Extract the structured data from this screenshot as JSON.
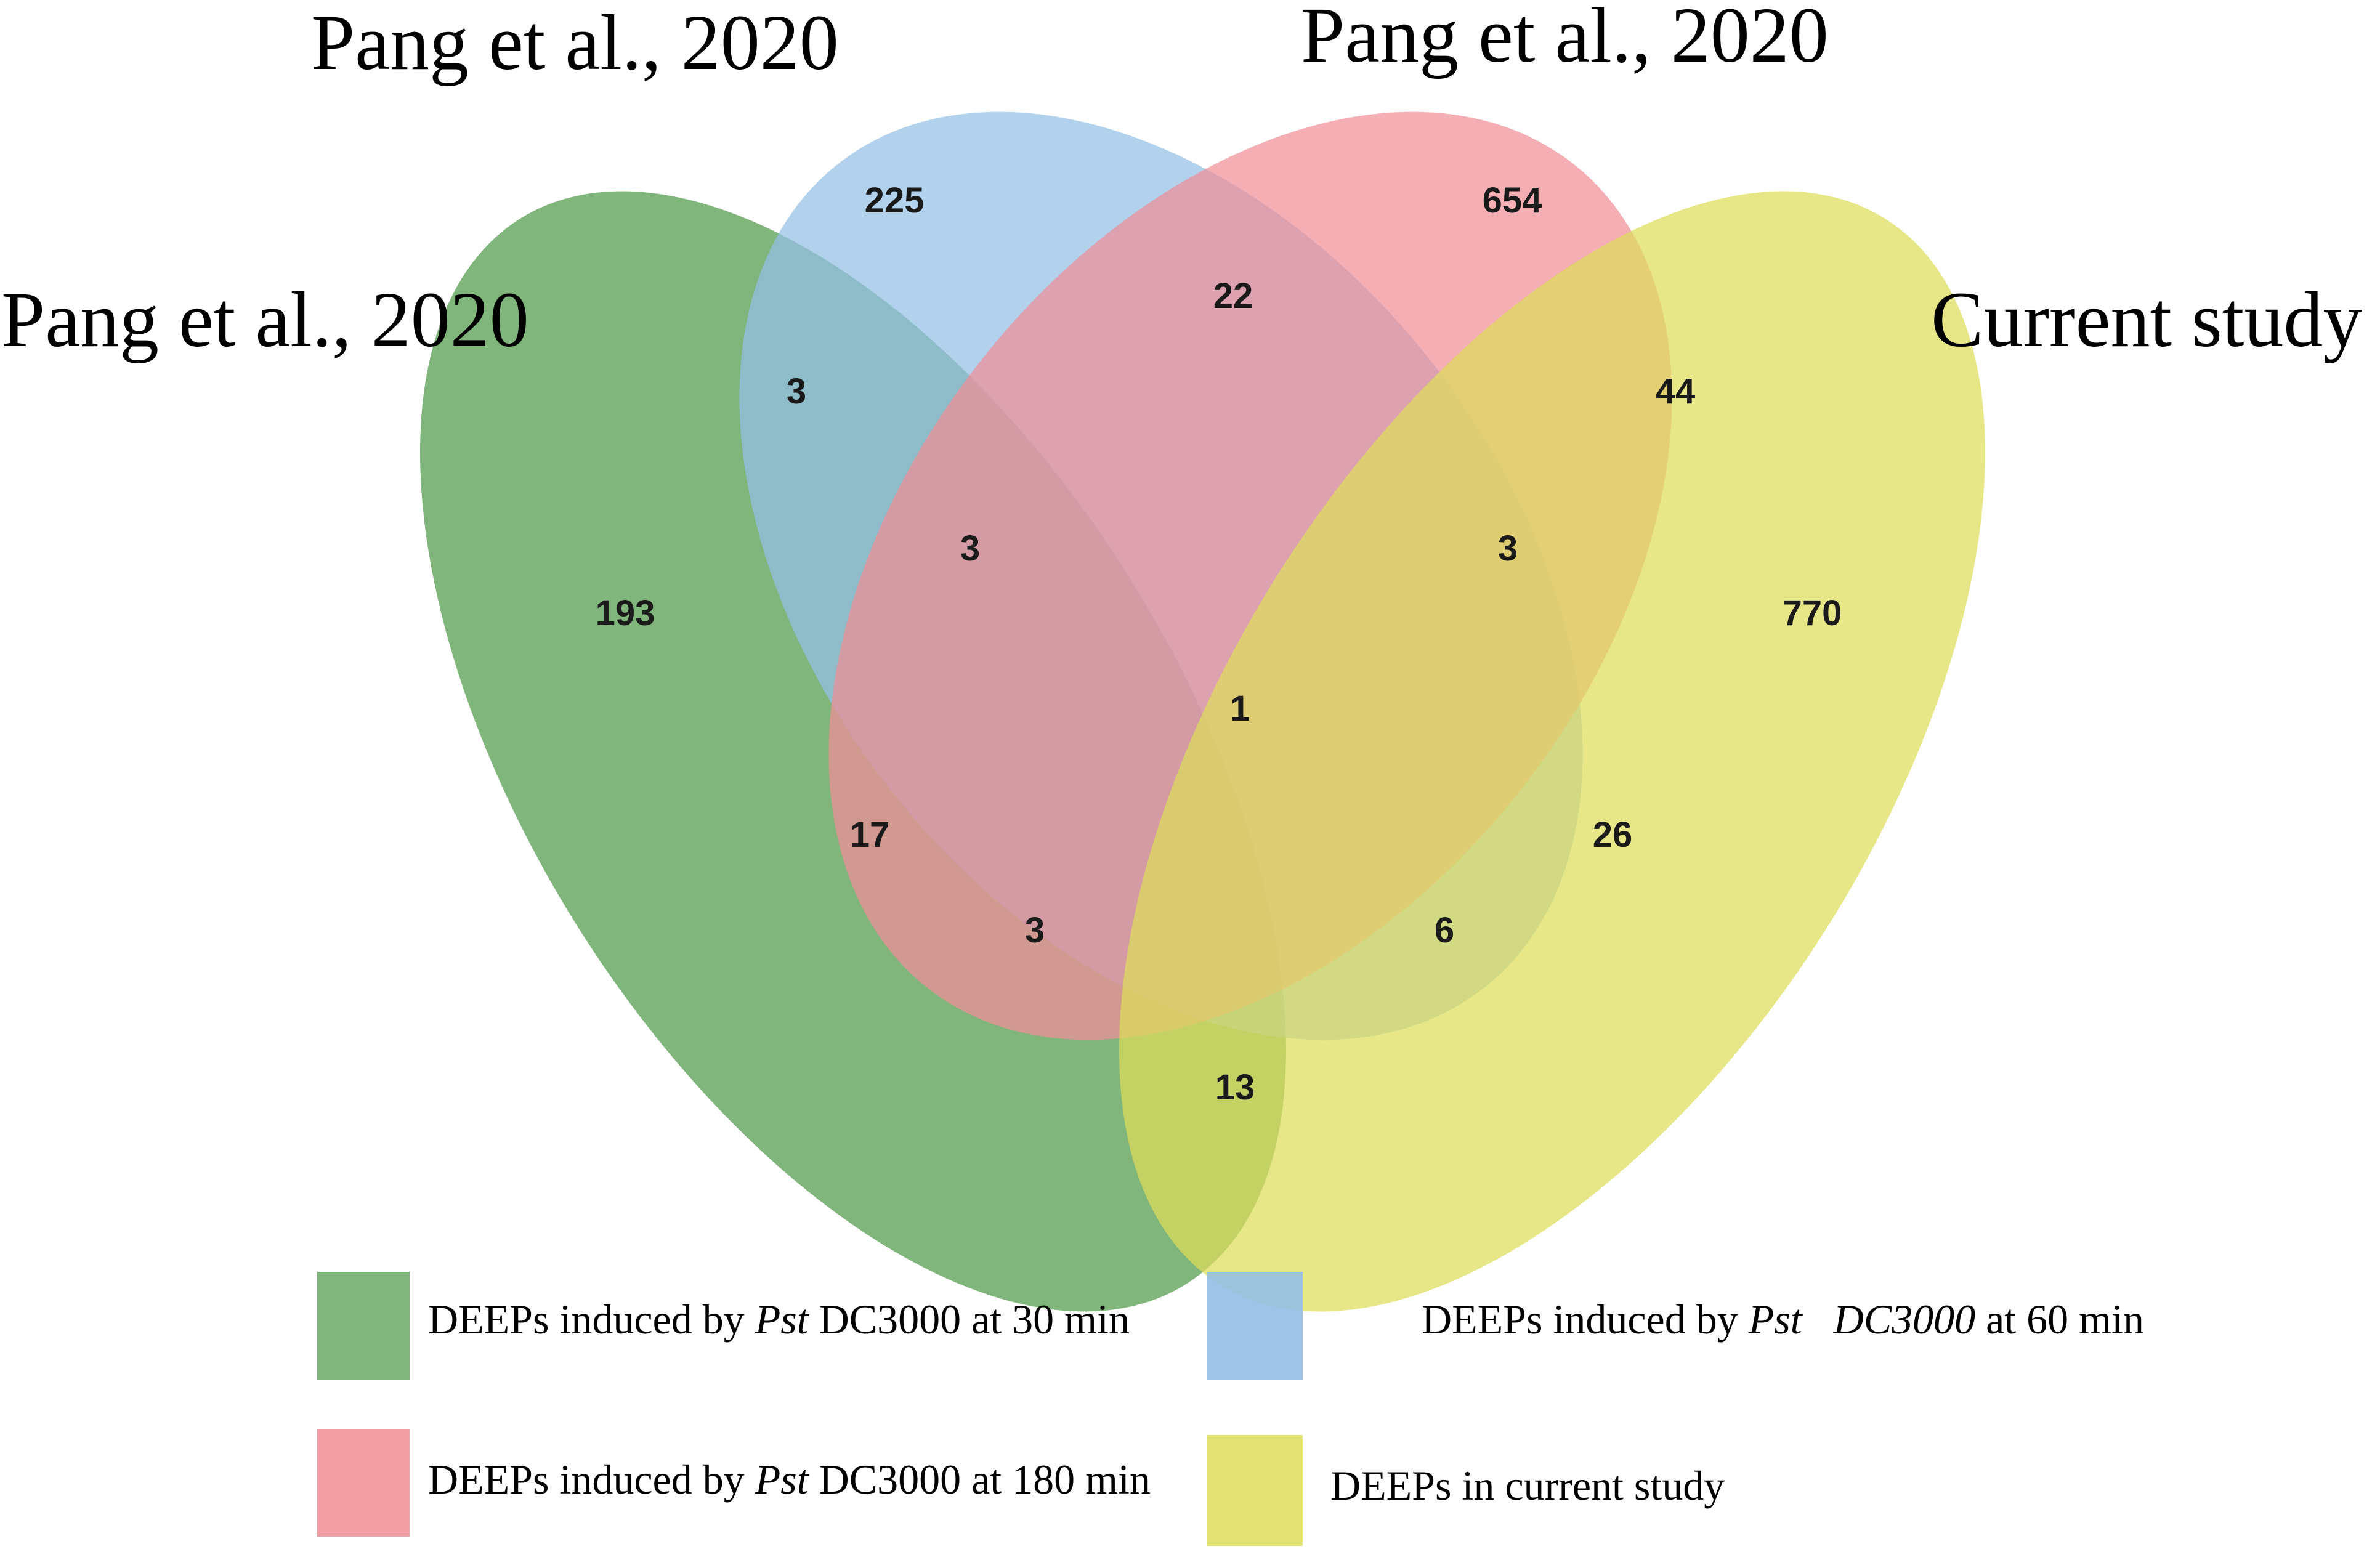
{
  "colors": {
    "green": "#6aa864",
    "blue": "#93bfe6",
    "pink": "#f08f97",
    "yellow": "#dede5a"
  },
  "set_labels": {
    "blue": "Pang et al., 2020",
    "pink": "Pang et al., 2020",
    "green": "Pang et al., 2020",
    "yellow": "Current study"
  },
  "counts": {
    "blue_only": "225",
    "pink_only": "654",
    "green_only": "193",
    "yellow_only": "770",
    "blue_pink": "22",
    "green_blue": "3",
    "pink_yellow": "44",
    "green_blue_pink": "3",
    "blue_pink_yellow": "3",
    "all_four": "1",
    "green_pink": "17",
    "blue_yellow": "26",
    "green_pink_yellow": "3",
    "green_blue_yellow": "6",
    "green_yellow": "13"
  },
  "legend": [
    {
      "color_key": "green",
      "prefix": "DEEPs induced by ",
      "italic": "Pst",
      "suffix": " DC3000 at 30 min"
    },
    {
      "color_key": "blue",
      "prefix": "DEEPs induced by ",
      "italic": "Pst   DC3000",
      "suffix": " at 60 min"
    },
    {
      "color_key": "pink",
      "prefix": "DEEPs induced by ",
      "italic": "Pst",
      "suffix": " DC3000 at 180 min"
    },
    {
      "color_key": "yellow",
      "prefix": "DEEPs in current study",
      "italic": "",
      "suffix": ""
    }
  ]
}
